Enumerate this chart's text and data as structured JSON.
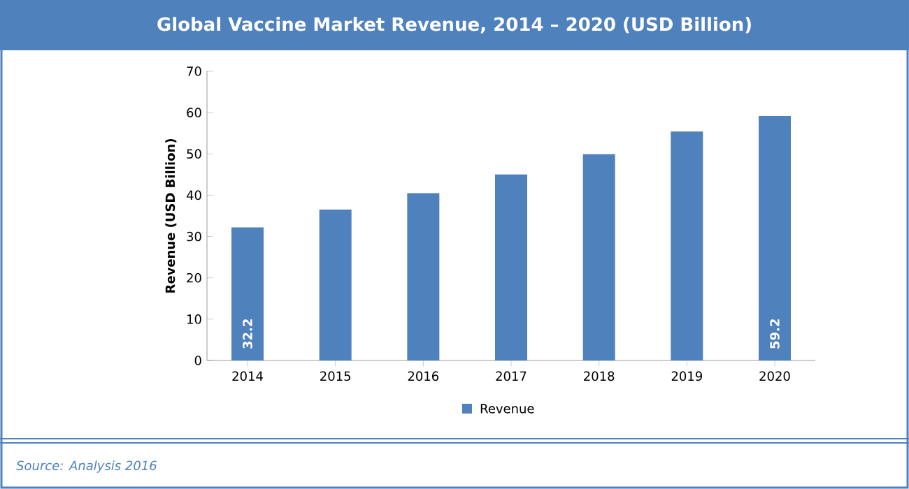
{
  "chart_data": {
    "type": "bar",
    "title": "Global Vaccine Market Revenue, 2014 – 2020  (USD Billion)",
    "ylabel": "Revenue (USD Billion)",
    "categories": [
      "2014",
      "2015",
      "2016",
      "2017",
      "2018",
      "2019",
      "2020"
    ],
    "series": [
      {
        "name": "Revenue",
        "color": "#4f81bd",
        "values": [
          32.2,
          36.5,
          40.5,
          45.0,
          49.9,
          55.4,
          59.2
        ],
        "value_labels": [
          "32.2",
          null,
          null,
          null,
          null,
          null,
          "59.2"
        ]
      }
    ],
    "ylim": [
      0,
      70
    ],
    "yticks": [
      0,
      10,
      20,
      30,
      40,
      50,
      60,
      70
    ],
    "legend": "bottom",
    "annotations": [
      "Source: Analysis 2016"
    ]
  }
}
